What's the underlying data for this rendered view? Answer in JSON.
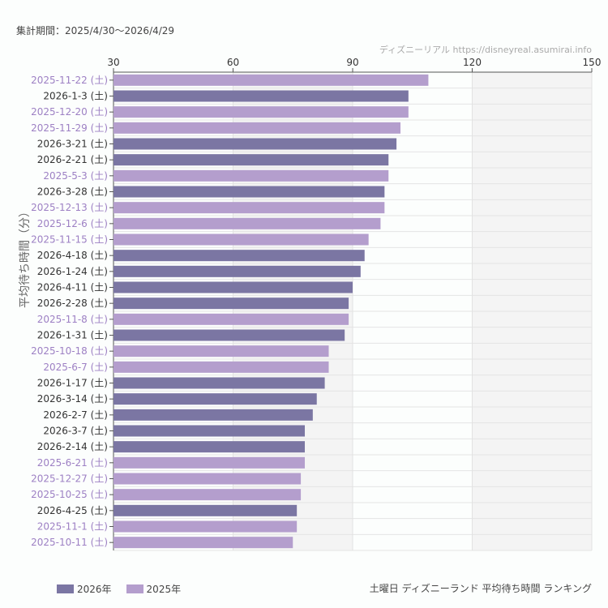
{
  "period_label": "集計期間：2025/4/30〜2026/4/29",
  "credit": "ディズニーリアル https://disneyreal.asumirai.info",
  "caption": "土曜日 ディズニーランド 平均待ち時間 ランキング",
  "colors": {
    "2026": "#7b76a3",
    "2025": "#b49ecd",
    "label2026": "#333333",
    "label2025": "#9d80c4"
  },
  "chart_data": {
    "type": "bar",
    "orientation": "horizontal",
    "ylabel": "平均待ち時間（分）",
    "xlim": [
      30,
      150
    ],
    "xticks": [
      30,
      60,
      90,
      120,
      150
    ],
    "grid": true,
    "legend_position": "bottom-left",
    "legend": [
      {
        "name": "2026年",
        "key": "2026"
      },
      {
        "name": "2025年",
        "key": "2025"
      }
    ],
    "categories": [
      "2025-11-22 (土)",
      "2026-1-3 (土)",
      "2025-12-20 (土)",
      "2025-11-29 (土)",
      "2026-3-21 (土)",
      "2026-2-21 (土)",
      "2025-5-3 (土)",
      "2026-3-28 (土)",
      "2025-12-13 (土)",
      "2025-12-6 (土)",
      "2025-11-15 (土)",
      "2026-4-18 (土)",
      "2026-1-24 (土)",
      "2026-4-11 (土)",
      "2026-2-28 (土)",
      "2025-11-8 (土)",
      "2026-1-31 (土)",
      "2025-10-18 (土)",
      "2025-6-7 (土)",
      "2026-1-17 (土)",
      "2026-3-14 (土)",
      "2026-2-7 (土)",
      "2026-3-7 (土)",
      "2026-2-14 (土)",
      "2025-6-21 (土)",
      "2025-12-27 (土)",
      "2025-10-25 (土)",
      "2026-4-25 (土)",
      "2025-11-1 (土)",
      "2025-10-11 (土)"
    ],
    "values": [
      109,
      104,
      104,
      102,
      101,
      99,
      99,
      98,
      98,
      97,
      94,
      93,
      92,
      90,
      89,
      89,
      88,
      84,
      84,
      83,
      81,
      80,
      78,
      78,
      78,
      77,
      77,
      76,
      76,
      75
    ],
    "years": [
      "2025",
      "2026",
      "2025",
      "2025",
      "2026",
      "2026",
      "2025",
      "2026",
      "2025",
      "2025",
      "2025",
      "2026",
      "2026",
      "2026",
      "2026",
      "2025",
      "2026",
      "2025",
      "2025",
      "2026",
      "2026",
      "2026",
      "2026",
      "2026",
      "2025",
      "2025",
      "2025",
      "2026",
      "2025",
      "2025"
    ]
  }
}
